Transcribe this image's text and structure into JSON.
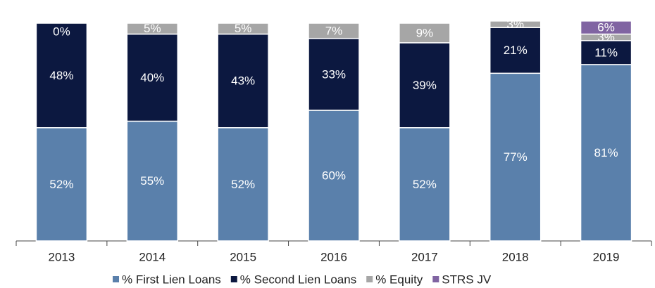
{
  "chart_data": {
    "type": "stacked_bar",
    "categories": [
      "2013",
      "2014",
      "2015",
      "2016",
      "2017",
      "2018",
      "2019"
    ],
    "series": [
      {
        "name": "% First Lien Loans",
        "color": "#5a80ab",
        "values": [
          52,
          55,
          52,
          60,
          52,
          77,
          81
        ],
        "value_labels": [
          "52%",
          "55%",
          "52%",
          "60%",
          "52%",
          "77%",
          "81%"
        ]
      },
      {
        "name": "% Second Lien Loans",
        "color": "#0c1840",
        "values": [
          48,
          40,
          43,
          33,
          39,
          21,
          11
        ],
        "value_labels": [
          "48%",
          "40%",
          "43%",
          "33%",
          "39%",
          "21%",
          "11%"
        ]
      },
      {
        "name": "% Equity",
        "color": "#a6a6a6",
        "values": [
          0,
          5,
          5,
          7,
          9,
          3,
          3
        ],
        "value_labels": [
          "0%",
          "5%",
          "5%",
          "7%",
          "9%",
          "3%",
          "3%"
        ]
      },
      {
        "name": "STRS JV",
        "color": "#8064a2",
        "values": [
          null,
          null,
          null,
          null,
          null,
          null,
          6
        ],
        "value_labels": [
          null,
          null,
          null,
          null,
          null,
          null,
          "6%"
        ]
      }
    ],
    "legend": "bottom"
  }
}
